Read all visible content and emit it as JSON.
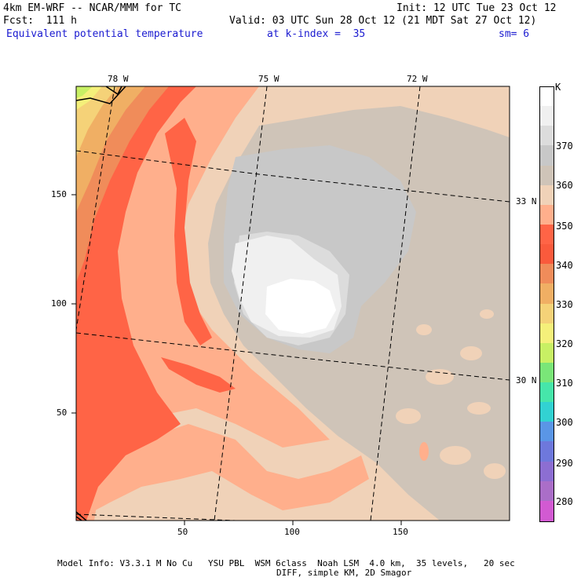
{
  "header": {
    "line1_left": "4km EM-WRF -- NCAR/MMM for TC",
    "line1_right": "Init: 12 UTC Tue 23 Oct 12",
    "line2_left": "Fcst:  111 h",
    "line2_right": "Valid: 03 UTC Sun 28 Oct 12 (21 MDT Sat 27 Oct 12)",
    "field_name": "Equivalent potential temperature",
    "level": "at k-index =  35",
    "smoothing": "sm= 6"
  },
  "map": {
    "lon_labels": [
      "78 W",
      "75 W",
      "72 W"
    ],
    "lat_labels": [
      "33 N",
      "30 N"
    ],
    "x_ticks": [
      "50",
      "100",
      "150"
    ],
    "y_ticks": [
      "150",
      "100",
      "50"
    ]
  },
  "colorbar": {
    "unit": "K",
    "labels": [
      "370",
      "360",
      "350",
      "340",
      "330",
      "320",
      "310",
      "300",
      "290",
      "280"
    ],
    "colors": [
      "#ffffff",
      "#f0f0f0",
      "#dcdcdc",
      "#c8c8c8",
      "#cfc4b8",
      "#f0d2b8",
      "#ffaf8c",
      "#ff6446",
      "#fa5a3c",
      "#f08c5a",
      "#f0af64",
      "#f5d278",
      "#f5f07a",
      "#c8f064",
      "#7ae678",
      "#46e6aa",
      "#32d2d2",
      "#5a96e6",
      "#6e78dc",
      "#8c6ed2",
      "#aa6ec8",
      "#d25ad2"
    ]
  },
  "footer": {
    "line1": "Model Info: V3.3.1 M No Cu   YSU PBL  WSM 6class  Noah LSM  4.0 km,  35 levels,   20 sec",
    "line2": "DIFF, simple KM, 2D Smagor"
  }
}
